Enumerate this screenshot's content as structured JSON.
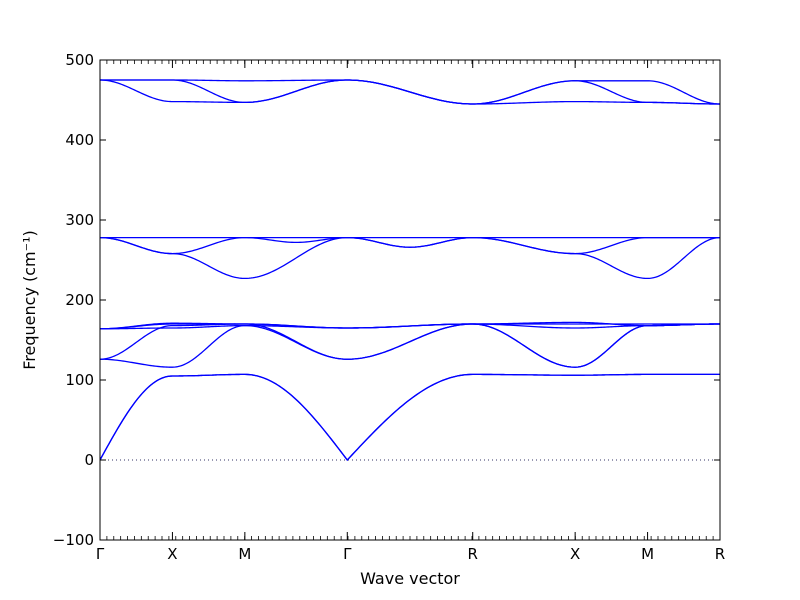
{
  "chart_data": {
    "type": "line",
    "title": "",
    "xlabel": "Wave vector",
    "ylabel": "Frequency (cm⁻¹)",
    "ylim": [
      -100,
      500
    ],
    "yticks": [
      -100,
      0,
      100,
      200,
      300,
      400,
      500
    ],
    "grid": false,
    "legend": "none",
    "line_color": "#0000ff",
    "zero_line_color": "#333366",
    "high_symmetry_points": [
      {
        "label": "Γ",
        "q": 0.0
      },
      {
        "label": "X",
        "q": 0.5
      },
      {
        "label": "M",
        "q": 1.0
      },
      {
        "label": "Γ",
        "q": 1.7071
      },
      {
        "label": "R",
        "q": 2.5731
      },
      {
        "label": "X",
        "q": 3.2802
      },
      {
        "label": "M",
        "q": 3.7802
      },
      {
        "label": "R",
        "q": 4.2802
      }
    ],
    "segments": [
      {
        "from": "Γ",
        "to": "X"
      },
      {
        "from": "X",
        "to": "M"
      },
      {
        "from": "M",
        "to": "Γ"
      },
      {
        "from": "Γ",
        "to": "R"
      },
      {
        "from": "R",
        "to": "X"
      },
      {
        "from": "X",
        "to": "M"
      },
      {
        "from": "M",
        "to": "R"
      }
    ],
    "bands": [
      {
        "values": [
          [
            0,
            105
          ],
          [
            105,
            107
          ],
          [
            107,
            0
          ],
          [
            0,
            107
          ],
          [
            107,
            106
          ],
          [
            106,
            107
          ],
          [
            107,
            107
          ]
        ]
      },
      {
        "values": [
          [
            0,
            105
          ],
          [
            105,
            107
          ],
          [
            107,
            0
          ],
          [
            0,
            107
          ],
          [
            107,
            106
          ],
          [
            106,
            107
          ],
          [
            107,
            107
          ]
        ]
      },
      {
        "values": [
          [
            126,
            116
          ],
          [
            116,
            168
          ],
          [
            168,
            126
          ],
          [
            126,
            170
          ],
          [
            170,
            116
          ],
          [
            116,
            168
          ],
          [
            168,
            170
          ]
        ]
      },
      {
        "values": [
          [
            126,
            168
          ],
          [
            168,
            170
          ],
          [
            170,
            126
          ],
          [
            126,
            170
          ],
          [
            170,
            116
          ],
          [
            116,
            168
          ],
          [
            168,
            170
          ]
        ]
      },
      {
        "values": [
          [
            164,
            165
          ],
          [
            165,
            168
          ],
          [
            168,
            165
          ],
          [
            165,
            170
          ],
          [
            170,
            165
          ],
          [
            165,
            168
          ],
          [
            168,
            170
          ]
        ]
      },
      {
        "values": [
          [
            164,
            170
          ],
          [
            170,
            170
          ],
          [
            170,
            165
          ],
          [
            165,
            170
          ],
          [
            170,
            170
          ],
          [
            170,
            170
          ],
          [
            170,
            170
          ]
        ]
      },
      {
        "values": [
          [
            164,
            171
          ],
          [
            171,
            170
          ],
          [
            170,
            165
          ],
          [
            165,
            170
          ],
          [
            170,
            172
          ],
          [
            172,
            168
          ],
          [
            168,
            170
          ]
        ]
      },
      {
        "values": [
          [
            278,
            258
          ],
          [
            258,
            227
          ],
          [
            227,
            278
          ],
          [
            278,
            278
          ],
          [
            278,
            258
          ],
          [
            258,
            227
          ],
          [
            227,
            278
          ]
        ]
      },
      {
        "values": [
          [
            278,
            258
          ],
          [
            258,
            278
          ],
          [
            278,
            278
          ],
          [
            278,
            266,
            278
          ],
          [
            278,
            258
          ],
          [
            258,
            278
          ],
          [
            278,
            278
          ]
        ]
      },
      {
        "values": [
          [
            278,
            278
          ],
          [
            278,
            278
          ],
          [
            278,
            272,
            278
          ],
          [
            278,
            266,
            278
          ],
          [
            278,
            278
          ],
          [
            278,
            278
          ],
          [
            278,
            278
          ]
        ]
      },
      {
        "values": [
          [
            475,
            448
          ],
          [
            448,
            447
          ],
          [
            447,
            475
          ],
          [
            475,
            445
          ],
          [
            445,
            448
          ],
          [
            448,
            447
          ],
          [
            447,
            445
          ]
        ]
      },
      {
        "values": [
          [
            475,
            475
          ],
          [
            475,
            447
          ],
          [
            447,
            475
          ],
          [
            475,
            445
          ],
          [
            445,
            474
          ],
          [
            474,
            447
          ],
          [
            447,
            445
          ]
        ]
      },
      {
        "values": [
          [
            475,
            475
          ],
          [
            475,
            474
          ],
          [
            474,
            475
          ],
          [
            475,
            445
          ],
          [
            445,
            474
          ],
          [
            474,
            474
          ],
          [
            474,
            445
          ]
        ]
      }
    ]
  }
}
